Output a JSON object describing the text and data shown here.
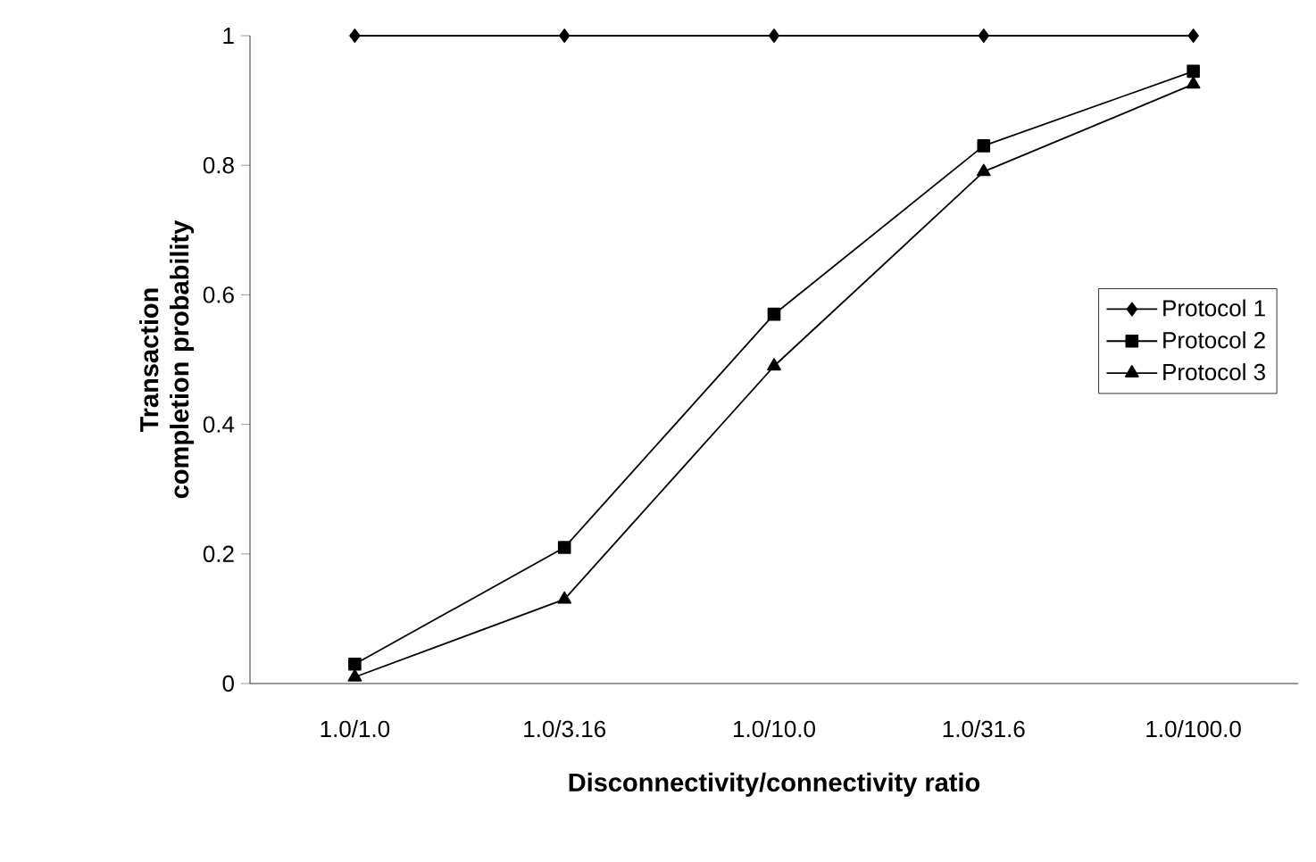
{
  "chart_data": {
    "type": "line",
    "xlabel": "Disconnectivity/connectivity ratio",
    "ylabel": "Transaction completion probability",
    "categories": [
      "1.0/1.0",
      "1.0/3.16",
      "1.0/10.0",
      "1.0/31.6",
      "1.0/100.0"
    ],
    "series": [
      {
        "name": "Protocol 1",
        "color": "#000000",
        "marker": "diamond",
        "values": [
          1,
          1,
          1,
          1,
          1
        ]
      },
      {
        "name": "Protocol 2",
        "color": "#000000",
        "marker": "square",
        "values": [
          0.03,
          0.21,
          0.57,
          0.83,
          0.945
        ]
      },
      {
        "name": "Protocol 3",
        "color": "#000000",
        "marker": "triangle",
        "values": [
          0.01,
          0.13,
          0.49,
          0.79,
          0.925
        ]
      }
    ],
    "ylim": [
      0,
      1
    ],
    "yticks": [
      0,
      0.2,
      0.4,
      0.6,
      0.8,
      1
    ],
    "grid": false,
    "legend": "right",
    "line_style": "solid"
  }
}
